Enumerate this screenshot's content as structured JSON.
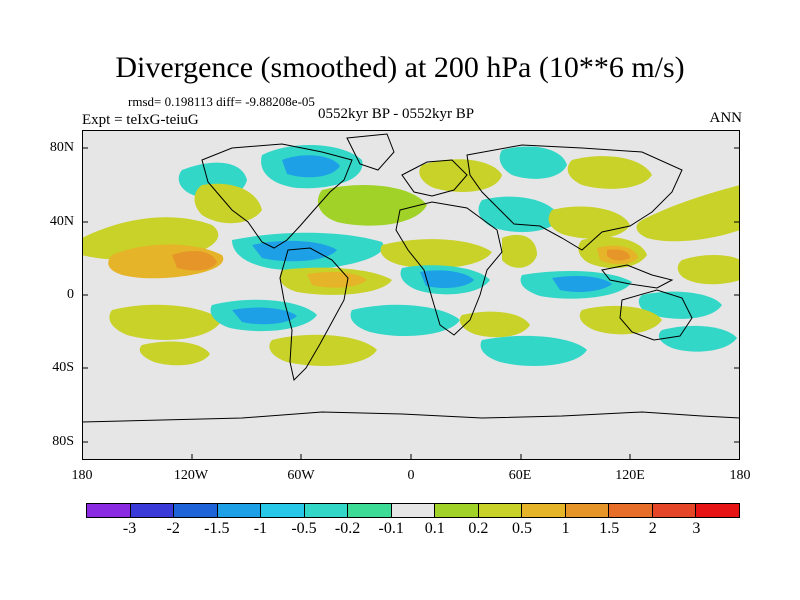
{
  "title": "Divergence (smoothed) at 200 hPa (10**6 m/s)",
  "stats": "rmsd= 0.198113 diff= -9.88208e-05",
  "experiment": "Expt = teIxG-teiuG",
  "period": "0552kyr BP - 0552kyr BP",
  "season": "ANN",
  "lat_labels": [
    "80N",
    "40N",
    "0",
    "40S",
    "80S"
  ],
  "lon_labels": [
    "180",
    "120W",
    "60W",
    "0",
    "60E",
    "120E",
    "180"
  ],
  "colorbar": {
    "labels": [
      "-3",
      "-2",
      "-1.5",
      "-1",
      "-0.5",
      "-0.2",
      "-0.1",
      "0.1",
      "0.2",
      "0.5",
      "1",
      "1.5",
      "2",
      "3"
    ],
    "colors": [
      "#8a2be2",
      "#3a3ad8",
      "#1e64d8",
      "#1ea0e6",
      "#28c8e8",
      "#32d7c8",
      "#3cdc96",
      "#e6e6e6",
      "#a0d228",
      "#c8d228",
      "#e6b428",
      "#e69628",
      "#e66e28",
      "#e64628",
      "#e61414"
    ]
  },
  "map": {
    "background": "#e6e6e6"
  }
}
